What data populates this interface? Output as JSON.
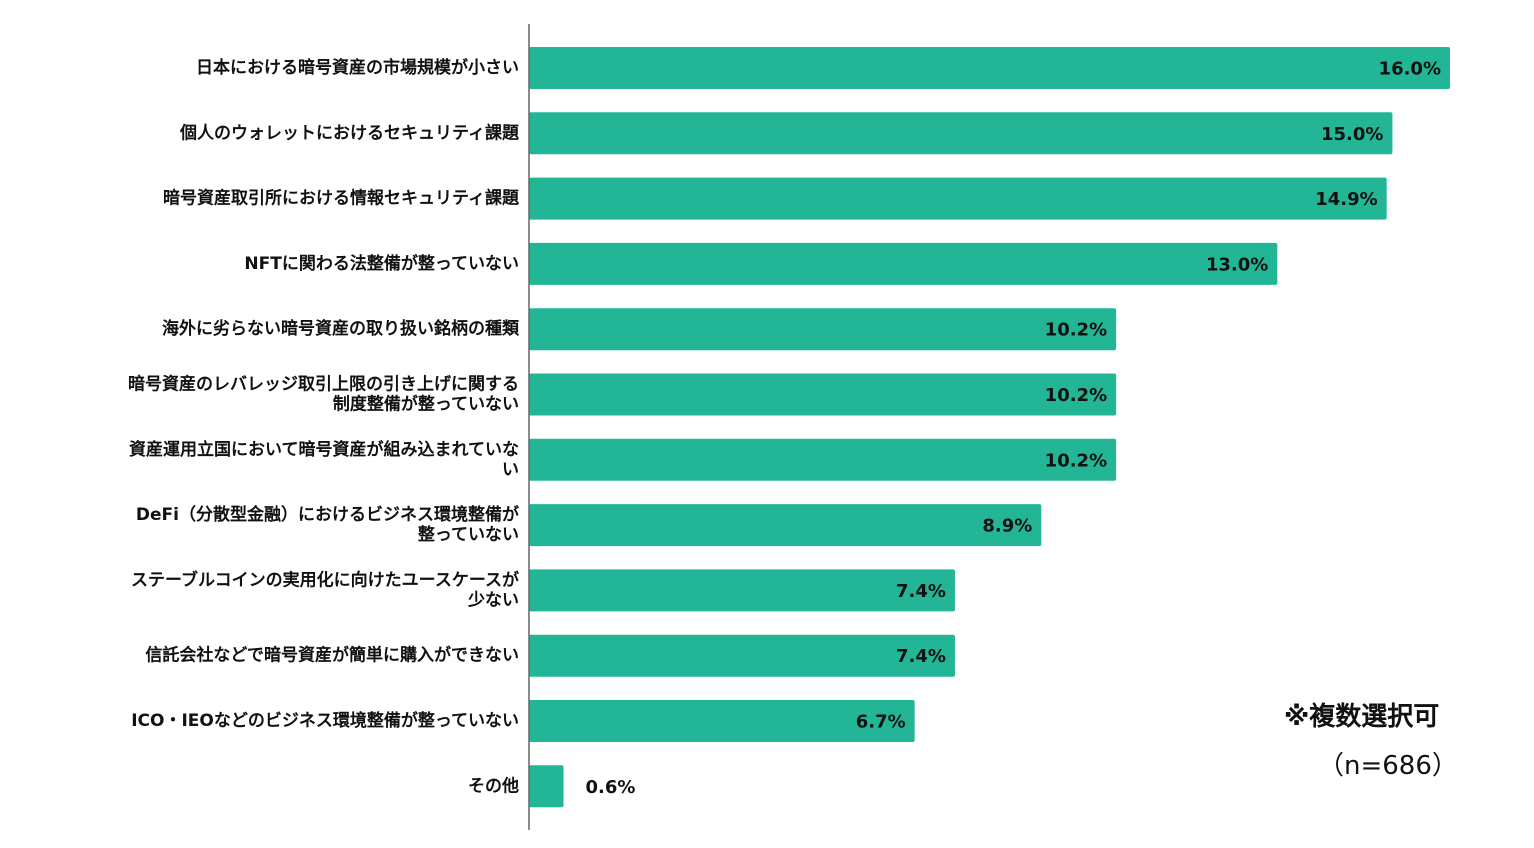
{
  "chart_data": {
    "type": "bar",
    "orientation": "horizontal",
    "categories": [
      [
        "日本における暗号資産の市場規模が小さい"
      ],
      [
        "個人のウォレットにおけるセキュリティ課題"
      ],
      [
        "暗号資産取引所における情報セキュリティ課題"
      ],
      [
        "NFTに関わる法整備が整っていない"
      ],
      [
        "海外に劣らない暗号資産の取り扱い銘柄の種類"
      ],
      [
        "暗号資産のレバレッジ取引上限の引き上げに関する",
        "制度整備が整っていない"
      ],
      [
        "資産運用立国において暗号資産が組み込まれていな",
        "い"
      ],
      [
        "DeFi（分散型金融）におけるビジネス環境整備が",
        "整っていない"
      ],
      [
        "ステーブルコインの実用化に向けたユースケースが",
        "少ない"
      ],
      [
        "信託会社などで暗号資産が簡単に購入ができない"
      ],
      [
        "ICO・IEOなどのビジネス環境整備が整っていない"
      ],
      [
        "その他"
      ]
    ],
    "values": [
      16.0,
      15.0,
      14.9,
      13.0,
      10.2,
      10.2,
      10.2,
      8.9,
      7.4,
      7.4,
      6.7,
      0.6
    ],
    "value_labels": [
      "16.0%",
      "15.0%",
      "14.9%",
      "13.0%",
      "10.2%",
      "10.2%",
      "10.2%",
      "8.9%",
      "7.4%",
      "7.4%",
      "6.7%",
      "0.6%"
    ],
    "xlim": [
      0,
      16
    ],
    "bar_color": "#22b697",
    "axis_color": "#666666",
    "grid": false
  },
  "notes": {
    "multiple_choice": "※複数選択可",
    "sample_size": "（n=686）"
  }
}
